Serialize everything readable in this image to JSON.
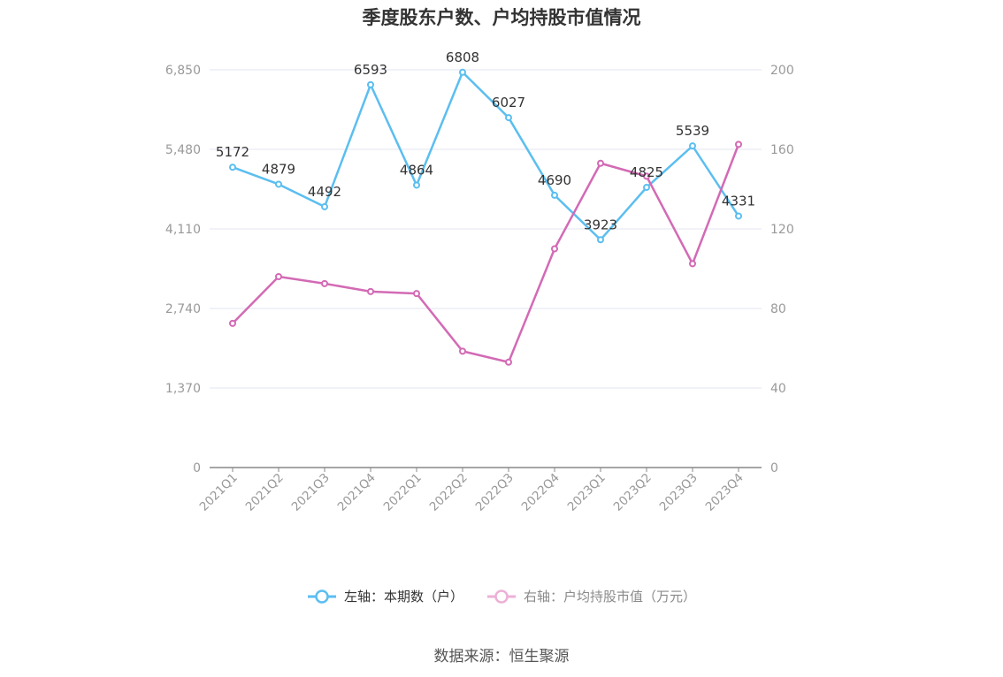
{
  "chart_data": {
    "type": "line",
    "title": "季度股东户数、户均持股市值情况",
    "categories": [
      "2021Q1",
      "2021Q2",
      "2021Q3",
      "2021Q4",
      "2022Q1",
      "2022Q2",
      "2022Q3",
      "2022Q4",
      "2023Q1",
      "2023Q2",
      "2023Q3",
      "2023Q4"
    ],
    "left_axis": {
      "ticks": [
        0,
        1370,
        2740,
        4110,
        5480,
        6850
      ],
      "tick_labels": [
        "0",
        "1,370",
        "2,740",
        "4,110",
        "5,480",
        "6,850"
      ],
      "ylim": [
        0,
        6850
      ]
    },
    "right_axis": {
      "ticks": [
        0,
        40,
        80,
        120,
        160,
        200
      ],
      "tick_labels": [
        "0",
        "40",
        "80",
        "120",
        "160",
        "200"
      ],
      "ylim": [
        0,
        200
      ]
    },
    "series": [
      {
        "name": "左轴：本期数（户）",
        "axis": "left",
        "color": "#5bbef0",
        "values": [
          5172,
          4879,
          4492,
          6593,
          4864,
          6808,
          6027,
          4690,
          3923,
          4825,
          5539,
          4331
        ],
        "labels": [
          "5172",
          "4879",
          "4492",
          "6593",
          "4864",
          "6808",
          "6027",
          "4690",
          "3923",
          "4825",
          "5539",
          "4331"
        ]
      },
      {
        "name": "右轴：户均持股市值（万元）",
        "axis": "right",
        "color": "#d36ab5",
        "values": [
          72.5,
          96,
          92.5,
          88.5,
          87.5,
          58.5,
          53,
          110,
          153,
          146.5,
          102.5,
          162.5
        ]
      }
    ],
    "grid": true,
    "legend_position": "bottom-center",
    "source": "数据来源：恒生聚源"
  }
}
